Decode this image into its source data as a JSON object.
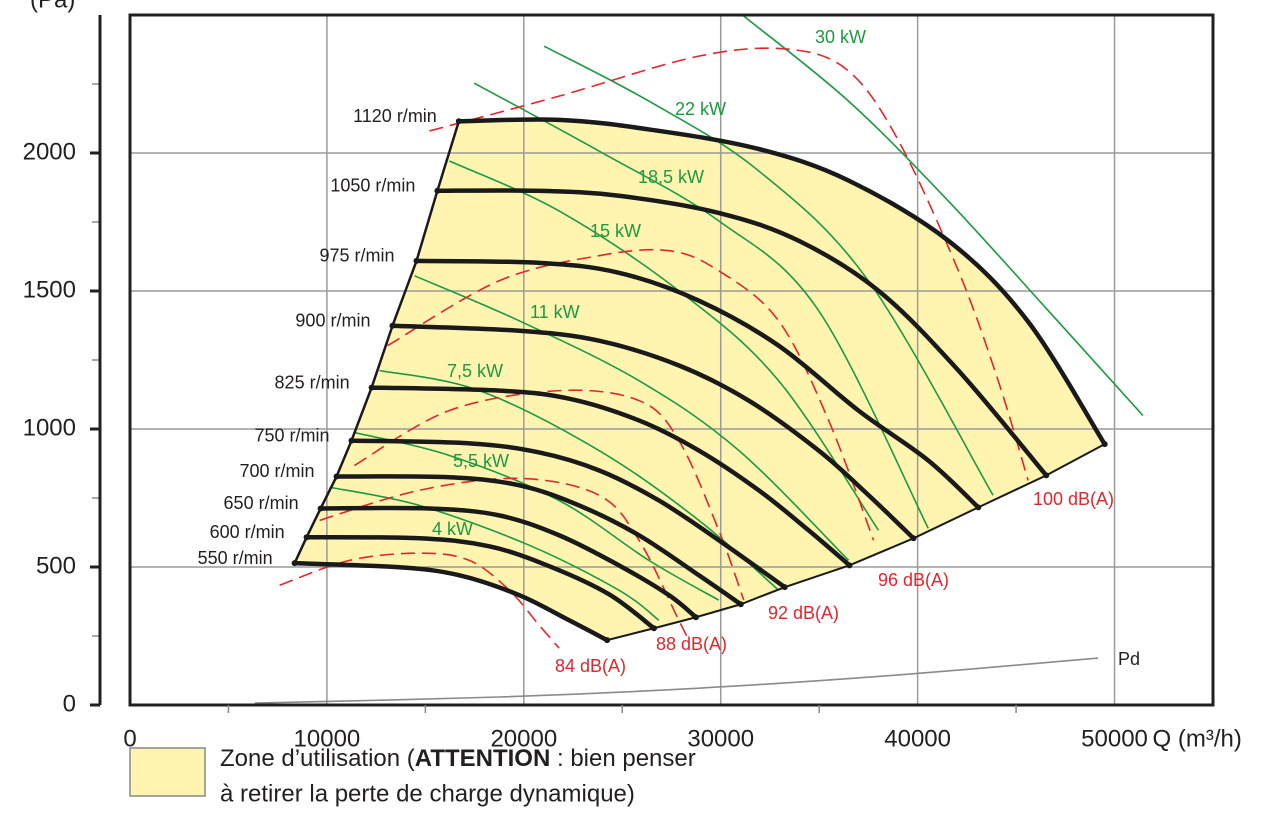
{
  "chart_data": {
    "type": "line",
    "ylabel": "(Pa)",
    "xlabel": "Q (m³/h)",
    "xlim": [
      0,
      55000
    ],
    "ylim": [
      0,
      2500
    ],
    "xticks": [
      0,
      10000,
      20000,
      30000,
      40000,
      50000
    ],
    "yticks": [
      0,
      500,
      1000,
      1500,
      2000
    ],
    "xminorticks": [
      5000,
      15000,
      25000,
      35000,
      45000
    ],
    "yminorticks": [
      250,
      750,
      1250,
      1750,
      2250
    ],
    "grid": true,
    "zone": {
      "color": "#fff4b0",
      "parts": [
        "Zone d’utilisation (",
        "ATTENTION",
        " : bien penser"
      ],
      "line2": "à retirer la perte de charge dynamique)"
    },
    "speed_color": "#1a1a1a",
    "speed_curves": [
      {
        "name": "1120 r/min",
        "x": [
          16700,
          21800,
          26400,
          31900,
          36500,
          41600,
          45600,
          49500
        ],
        "values": [
          2115,
          2120,
          2085,
          2015,
          1900,
          1680,
          1390,
          945
        ]
      },
      {
        "name": "1050 r/min",
        "x": [
          15610,
          20780,
          24830,
          29900,
          33960,
          38010,
          42070,
          46530
        ],
        "values": [
          1863,
          1863,
          1845,
          1783,
          1682,
          1501,
          1212,
          832
        ]
      },
      {
        "name": "975 r/min",
        "x": [
          14550,
          20780,
          24830,
          28890,
          32940,
          36990,
          40540,
          43080
        ],
        "values": [
          1609,
          1602,
          1566,
          1465,
          1302,
          1067,
          886,
          716
        ]
      },
      {
        "name": "900 r/min",
        "x": [
          13330,
          19770,
          23820,
          27880,
          31420,
          34970,
          37510,
          39790
        ],
        "values": [
          1374,
          1356,
          1320,
          1230,
          1103,
          922,
          760,
          604
        ]
      },
      {
        "name": "825 r/min",
        "x": [
          12270,
          18750,
          22300,
          25850,
          28890,
          31930,
          34460,
          36540
        ],
        "values": [
          1150,
          1139,
          1110,
          1031,
          922,
          778,
          633,
          506
        ]
      },
      {
        "name": "750 r/min",
        "x": [
          11250,
          17230,
          20780,
          23820,
          26860,
          29900,
          33250
        ],
        "values": [
          958,
          948,
          915,
          850,
          741,
          597,
          427
        ]
      },
      {
        "name": "700 r/min",
        "x": [
          10490,
          16220,
          19770,
          22810,
          25850,
          28890,
          31020
        ],
        "values": [
          828,
          825,
          796,
          723,
          615,
          470,
          365
        ]
      },
      {
        "name": "650 r/min",
        "x": [
          9680,
          15210,
          18750,
          21790,
          24830,
          27370,
          28740
        ],
        "values": [
          712,
          712,
          687,
          615,
          506,
          398,
          318
        ]
      },
      {
        "name": "600 r/min",
        "x": [
          8970,
          14700,
          18250,
          21290,
          24330,
          26610
        ],
        "values": [
          608,
          604,
          575,
          503,
          401,
          278
        ]
      },
      {
        "name": "550 r/min",
        "x": [
          8360,
          13680,
          16730,
          19770,
          22300,
          24230
        ],
        "values": [
          514,
          499,
          470,
          398,
          307,
          235
        ]
      }
    ],
    "power_color": "#1b9a42",
    "power_curves": [
      {
        "name": "30 kW",
        "x": [
          31170,
          36490,
          41560,
          46630,
          51440
        ],
        "values": [
          2496,
          2188,
          1826,
          1429,
          1049
        ]
      },
      {
        "name": "22 kW",
        "x": [
          21030,
          26350,
          31930,
          37500,
          43830
        ],
        "values": [
          2387,
          2188,
          1935,
          1537,
          760
        ]
      },
      {
        "name": "18,5 kW",
        "x": [
          17480,
          23820,
          29900,
          34970,
          40540
        ],
        "values": [
          2253,
          2007,
          1754,
          1429,
          640
        ]
      },
      {
        "name": "15 kW",
        "x": [
          16220,
          21790,
          27870,
          32940,
          38010
        ],
        "values": [
          1971,
          1790,
          1501,
          1175,
          633
        ]
      },
      {
        "name": "11 kW",
        "x": [
          14450,
          19770,
          25850,
          30920,
          36490
        ],
        "values": [
          1555,
          1392,
          1175,
          922,
          524
        ]
      },
      {
        "name": "7,5 kW",
        "x": [
          12670,
          17740,
          23820,
          28890,
          32940
        ],
        "values": [
          1212,
          1139,
          922,
          669,
          416
        ]
      },
      {
        "name": "5,5 kW",
        "x": [
          11400,
          16220,
          21790,
          26350,
          29900
        ],
        "values": [
          987,
          904,
          741,
          524,
          380
        ]
      },
      {
        "name": "4 kW",
        "x": [
          10140,
          14700,
          20270,
          24830,
          26860
        ],
        "values": [
          789,
          723,
          579,
          416,
          307
        ]
      }
    ],
    "noise_color": "#e3262e",
    "noise_curves": [
      {
        "name": "84 dB(A)",
        "x": [
          7600,
          11150,
          14700,
          17230,
          19260,
          20780,
          21790
        ],
        "values": [
          434,
          524,
          550,
          524,
          416,
          289,
          206
        ]
      },
      {
        "name": "88 dB(A)",
        "x": [
          9630,
          14700,
          19770,
          23820,
          25850,
          27870,
          28380
        ],
        "values": [
          669,
          778,
          821,
          760,
          597,
          307,
          235
        ]
      },
      {
        "name": "92 dB(A)",
        "x": [
          11400,
          16220,
          21790,
          25850,
          27870,
          29900,
          31170
        ],
        "values": [
          868,
          1067,
          1139,
          1103,
          959,
          633,
          380
        ]
      },
      {
        "name": "96 dB(A)",
        "x": [
          13080,
          18750,
          23820,
          27370,
          29900,
          32940,
          35480,
          37760
        ],
        "values": [
          1302,
          1537,
          1628,
          1646,
          1573,
          1392,
          1031,
          597
        ]
      },
      {
        "name": "100 dB(A)",
        "x": [
          15210,
          21790,
          28890,
          33450,
          36490,
          39030,
          42070,
          44090,
          45610
        ],
        "values": [
          2080,
          2206,
          2351,
          2376,
          2297,
          2044,
          1573,
          1175,
          814
        ]
      }
    ],
    "pd_color": "#8a8a8a",
    "pd_curve": {
      "name": "Pd",
      "x": [
        6340,
        18750,
        28890,
        39030,
        49160
      ],
      "values": [
        7,
        29,
        61,
        109,
        170
      ]
    }
  }
}
